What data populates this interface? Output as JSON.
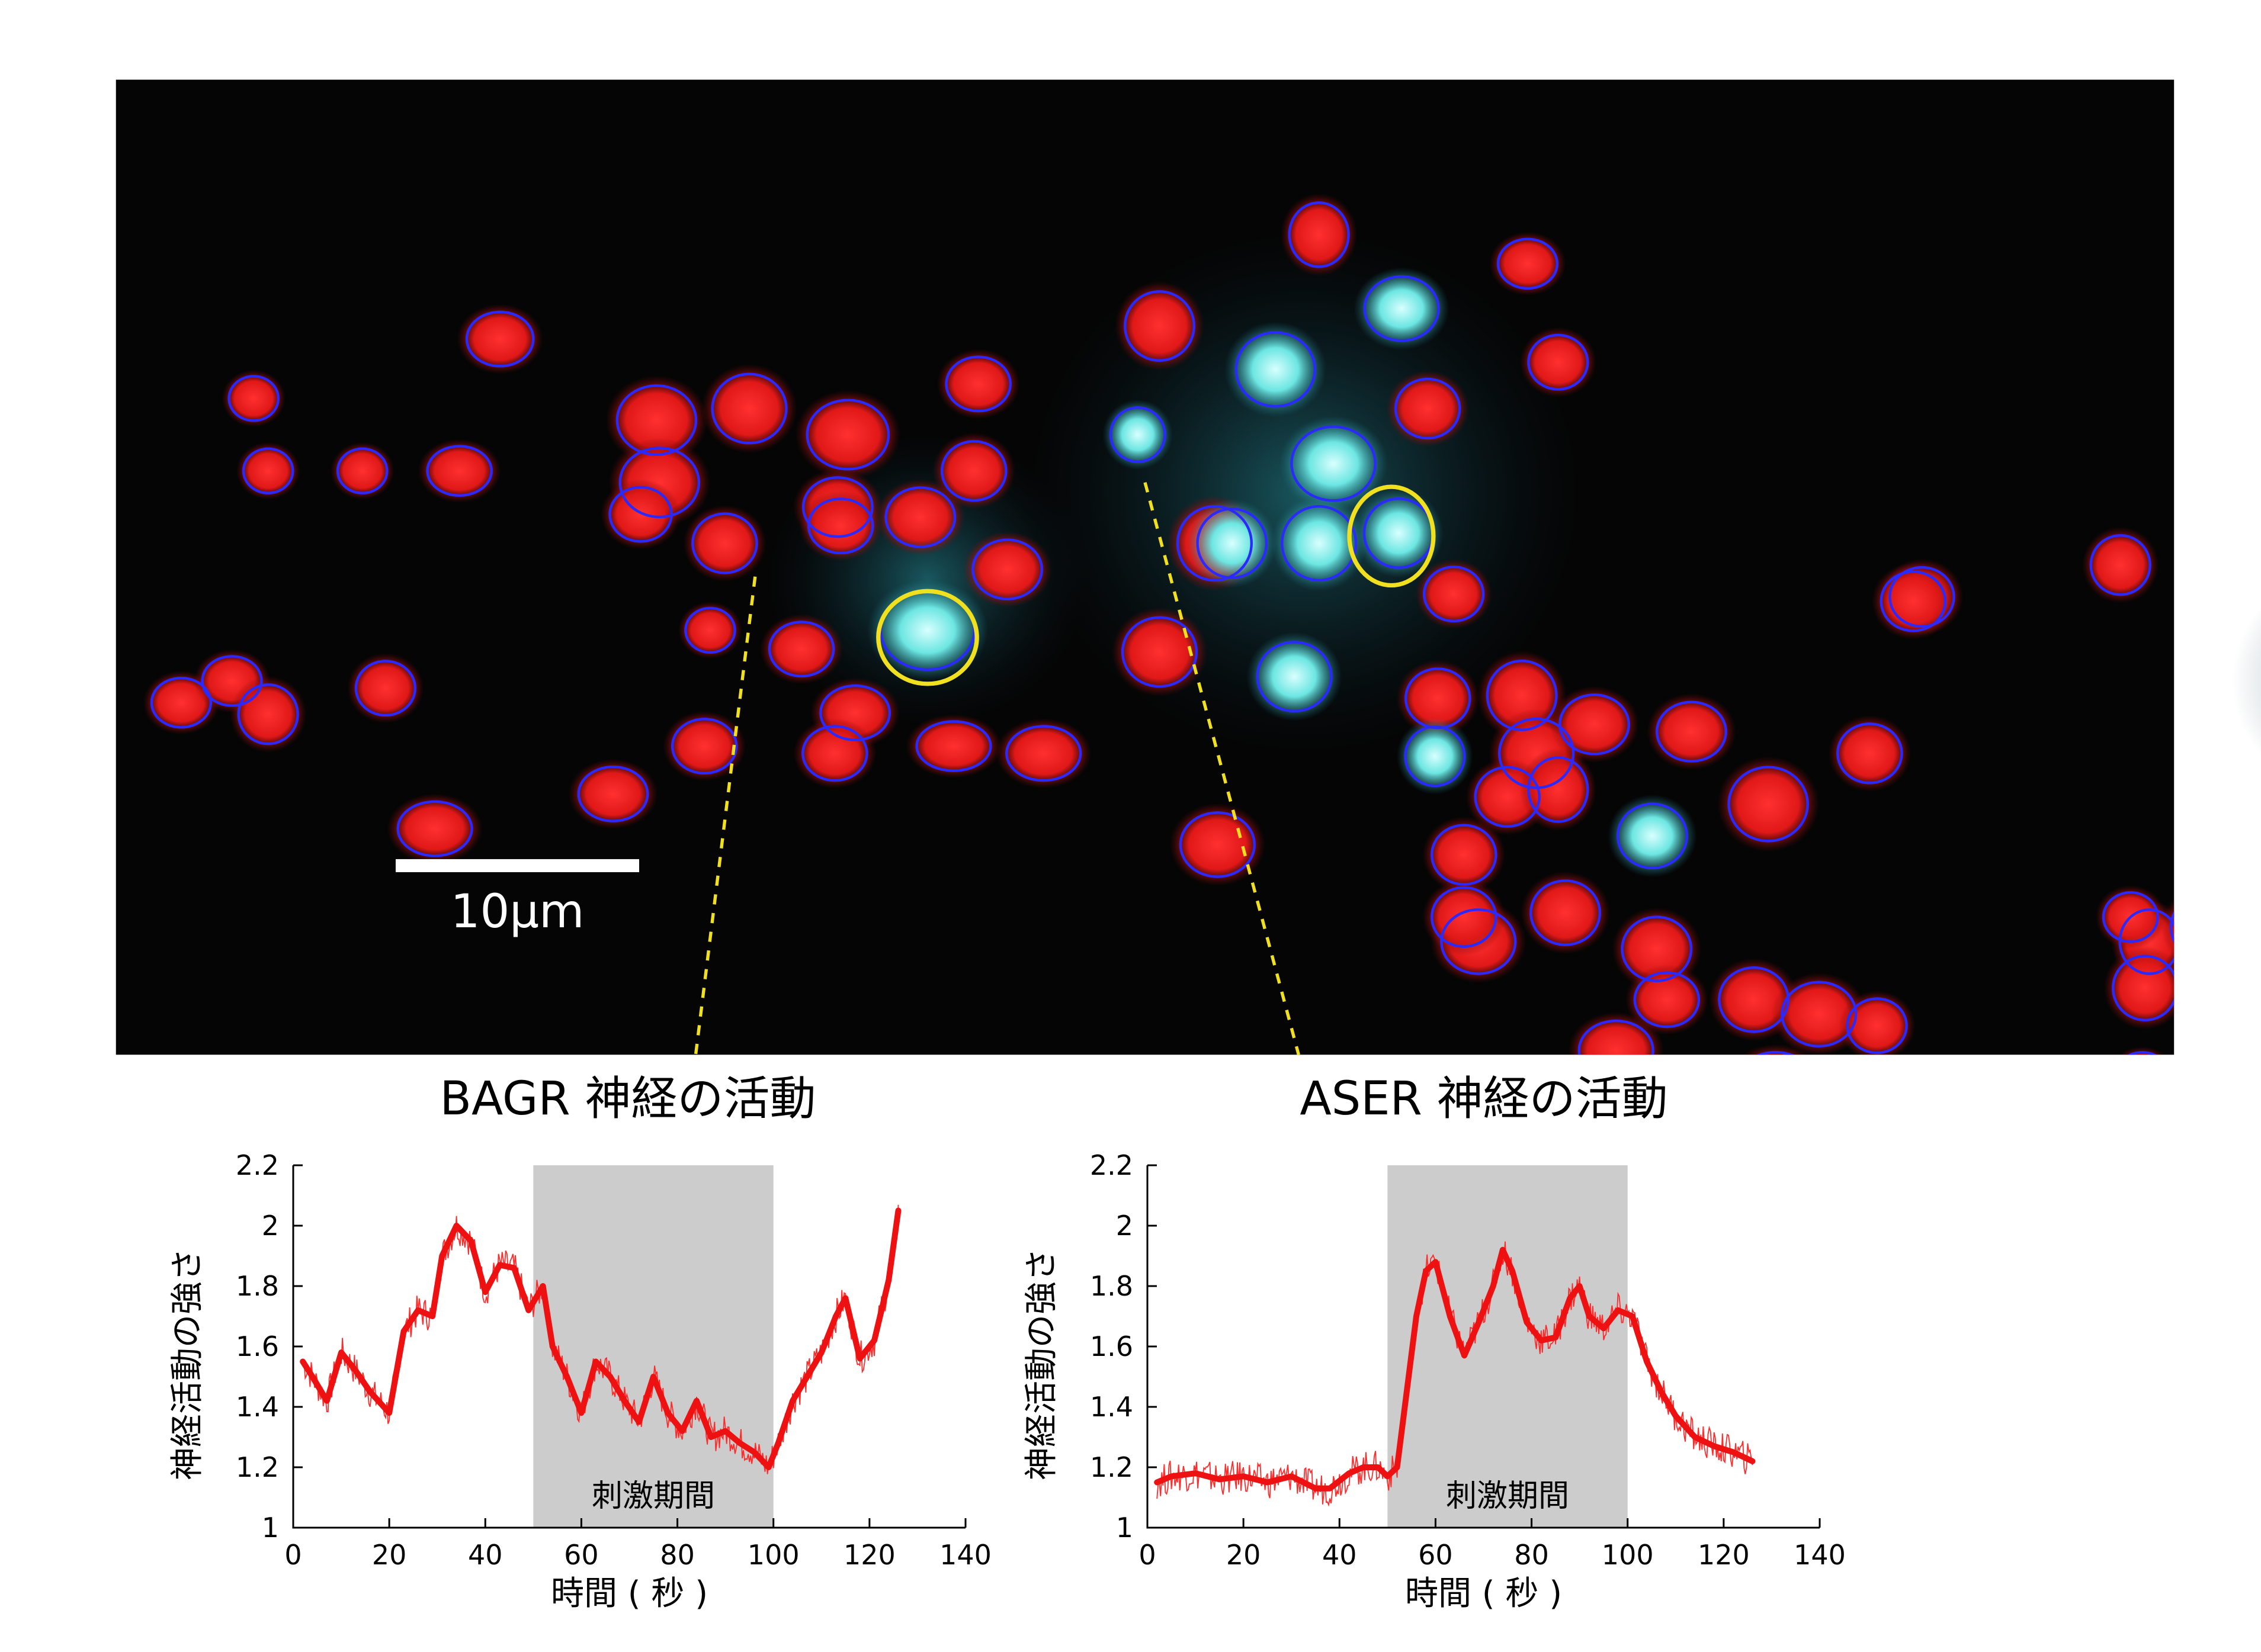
{
  "micrograph": {
    "scale_bar_label": "10μm",
    "colors": {
      "red_cell": "#e01c1c",
      "cyan_cell": "#5fe0dc",
      "roi_outline": "#2a2aff",
      "highlight_outline": "#f0e020",
      "background": "#050505"
    },
    "cells": [
      {
        "cx": 345,
        "cy": 234,
        "rx": 27,
        "ry": 22,
        "c": "red"
      },
      {
        "cx": 317,
        "cy": 325,
        "rx": 26,
        "ry": 20,
        "c": "red"
      },
      {
        "cx": 453,
        "cy": 290,
        "rx": 32,
        "ry": 28,
        "c": "red"
      },
      {
        "cx": 517,
        "cy": 282,
        "rx": 30,
        "ry": 28,
        "c": "red"
      },
      {
        "cx": 455,
        "cy": 333,
        "rx": 32,
        "ry": 28,
        "c": "red"
      },
      {
        "cx": 585,
        "cy": 300,
        "rx": 33,
        "ry": 28,
        "c": "red"
      },
      {
        "cx": 578,
        "cy": 350,
        "rx": 28,
        "ry": 24,
        "c": "red"
      },
      {
        "cx": 635,
        "cy": 357,
        "rx": 28,
        "ry": 24,
        "c": "red"
      },
      {
        "cx": 500,
        "cy": 375,
        "rx": 26,
        "ry": 24,
        "c": "red"
      },
      {
        "cx": 442,
        "cy": 355,
        "rx": 25,
        "ry": 22,
        "c": "red"
      },
      {
        "cx": 672,
        "cy": 325,
        "rx": 26,
        "ry": 24,
        "c": "red"
      },
      {
        "cx": 675,
        "cy": 265,
        "rx": 26,
        "ry": 22,
        "c": "red"
      },
      {
        "cx": 580,
        "cy": 363,
        "rx": 26,
        "ry": 22,
        "c": "red"
      },
      {
        "cx": 695,
        "cy": 393,
        "rx": 28,
        "ry": 24,
        "c": "red"
      },
      {
        "cx": 490,
        "cy": 435,
        "rx": 20,
        "ry": 18,
        "c": "red"
      },
      {
        "cx": 553,
        "cy": 448,
        "rx": 26,
        "ry": 22,
        "c": "red"
      },
      {
        "cx": 590,
        "cy": 492,
        "rx": 28,
        "ry": 22,
        "c": "red"
      },
      {
        "cx": 576,
        "cy": 520,
        "rx": 26,
        "ry": 22,
        "c": "red"
      },
      {
        "cx": 658,
        "cy": 515,
        "rx": 30,
        "ry": 20,
        "c": "red"
      },
      {
        "cx": 720,
        "cy": 520,
        "rx": 30,
        "ry": 22,
        "c": "red"
      },
      {
        "cx": 486,
        "cy": 515,
        "rx": 26,
        "ry": 22,
        "c": "red"
      },
      {
        "cx": 423,
        "cy": 548,
        "rx": 28,
        "ry": 22,
        "c": "red"
      },
      {
        "cx": 300,
        "cy": 572,
        "rx": 30,
        "ry": 22,
        "c": "red"
      },
      {
        "cx": 266,
        "cy": 475,
        "rx": 24,
        "ry": 22,
        "c": "red"
      },
      {
        "cx": 125,
        "cy": 485,
        "rx": 24,
        "ry": 20,
        "c": "red"
      },
      {
        "cx": 160,
        "cy": 470,
        "rx": 24,
        "ry": 20,
        "c": "red"
      },
      {
        "cx": 185,
        "cy": 493,
        "rx": 24,
        "ry": 24,
        "c": "red"
      },
      {
        "cx": 175,
        "cy": 275,
        "rx": 20,
        "ry": 18,
        "c": "red"
      },
      {
        "cx": 185,
        "cy": 325,
        "rx": 20,
        "ry": 18,
        "c": "red"
      },
      {
        "cx": 250,
        "cy": 325,
        "rx": 20,
        "ry": 18,
        "c": "red"
      },
      {
        "cx": 910,
        "cy": 162,
        "rx": 24,
        "ry": 26,
        "c": "red"
      },
      {
        "cx": 1054,
        "cy": 182,
        "rx": 24,
        "ry": 20,
        "c": "red"
      },
      {
        "cx": 1075,
        "cy": 250,
        "rx": 24,
        "ry": 22,
        "c": "red"
      },
      {
        "cx": 985,
        "cy": 282,
        "rx": 26,
        "ry": 24,
        "c": "red"
      },
      {
        "cx": 800,
        "cy": 225,
        "rx": 28,
        "ry": 28,
        "c": "red"
      },
      {
        "cx": 800,
        "cy": 450,
        "rx": 30,
        "ry": 28,
        "c": "red"
      },
      {
        "cx": 838,
        "cy": 375,
        "rx": 30,
        "ry": 30,
        "c": "red"
      },
      {
        "cx": 1003,
        "cy": 410,
        "rx": 24,
        "ry": 22,
        "c": "red"
      },
      {
        "cx": 1050,
        "cy": 480,
        "rx": 28,
        "ry": 28,
        "c": "red"
      },
      {
        "cx": 992,
        "cy": 482,
        "rx": 26,
        "ry": 24,
        "c": "red"
      },
      {
        "cx": 1060,
        "cy": 520,
        "rx": 30,
        "ry": 28,
        "c": "red"
      },
      {
        "cx": 1040,
        "cy": 550,
        "rx": 26,
        "ry": 24,
        "c": "red"
      },
      {
        "cx": 1075,
        "cy": 545,
        "rx": 24,
        "ry": 26,
        "c": "red"
      },
      {
        "cx": 1100,
        "cy": 500,
        "rx": 28,
        "ry": 24,
        "c": "red"
      },
      {
        "cx": 1167,
        "cy": 505,
        "rx": 28,
        "ry": 24,
        "c": "red"
      },
      {
        "cx": 1220,
        "cy": 555,
        "rx": 32,
        "ry": 30,
        "c": "red"
      },
      {
        "cx": 1290,
        "cy": 520,
        "rx": 26,
        "ry": 24,
        "c": "red"
      },
      {
        "cx": 1326,
        "cy": 412,
        "rx": 26,
        "ry": 24,
        "c": "red"
      },
      {
        "cx": 840,
        "cy": 583,
        "rx": 30,
        "ry": 26,
        "c": "red"
      },
      {
        "cx": 1010,
        "cy": 590,
        "rx": 26,
        "ry": 24,
        "c": "red"
      },
      {
        "cx": 1080,
        "cy": 630,
        "rx": 28,
        "ry": 26,
        "c": "red"
      },
      {
        "cx": 1020,
        "cy": 650,
        "rx": 30,
        "ry": 26,
        "c": "red"
      },
      {
        "cx": 1143,
        "cy": 655,
        "rx": 28,
        "ry": 26,
        "c": "red"
      },
      {
        "cx": 1150,
        "cy": 690,
        "rx": 26,
        "ry": 22,
        "c": "red"
      },
      {
        "cx": 1115,
        "cy": 725,
        "rx": 30,
        "ry": 24,
        "c": "red"
      },
      {
        "cx": 1210,
        "cy": 690,
        "rx": 28,
        "ry": 26,
        "c": "red"
      },
      {
        "cx": 1255,
        "cy": 700,
        "rx": 30,
        "ry": 26,
        "c": "red"
      },
      {
        "cx": 1225,
        "cy": 745,
        "rx": 30,
        "ry": 22,
        "c": "red"
      },
      {
        "cx": 1295,
        "cy": 708,
        "rx": 24,
        "ry": 22,
        "c": "red"
      },
      {
        "cx": 1010,
        "cy": 633,
        "rx": 26,
        "ry": 24,
        "c": "red"
      },
      {
        "cx": 1463,
        "cy": 390,
        "rx": 24,
        "ry": 24,
        "c": "red"
      },
      {
        "cx": 1320,
        "cy": 415,
        "rx": 26,
        "ry": 24,
        "c": "red"
      },
      {
        "cx": 1680,
        "cy": 435,
        "rx": 24,
        "ry": 22,
        "c": "red"
      },
      {
        "cx": 1775,
        "cy": 437,
        "rx": 24,
        "ry": 22,
        "c": "red"
      },
      {
        "cx": 1483,
        "cy": 650,
        "rx": 24,
        "ry": 26,
        "c": "red"
      },
      {
        "cx": 1520,
        "cy": 640,
        "rx": 26,
        "ry": 26,
        "c": "red"
      },
      {
        "cx": 1480,
        "cy": 682,
        "rx": 26,
        "ry": 26,
        "c": "red"
      },
      {
        "cx": 1525,
        "cy": 730,
        "rx": 20,
        "ry": 16,
        "c": "red"
      },
      {
        "cx": 1478,
        "cy": 740,
        "rx": 20,
        "ry": 16,
        "c": "red"
      },
      {
        "cx": 1590,
        "cy": 800,
        "rx": 28,
        "ry": 26,
        "c": "red"
      },
      {
        "cx": 1690,
        "cy": 790,
        "rx": 28,
        "ry": 26,
        "c": "red"
      },
      {
        "cx": 1730,
        "cy": 810,
        "rx": 26,
        "ry": 24,
        "c": "red"
      },
      {
        "cx": 1760,
        "cy": 773,
        "rx": 24,
        "ry": 24,
        "c": "red"
      },
      {
        "cx": 1800,
        "cy": 810,
        "rx": 24,
        "ry": 24,
        "c": "red"
      },
      {
        "cx": 1580,
        "cy": 830,
        "rx": 22,
        "ry": 18,
        "c": "red"
      },
      {
        "cx": 1470,
        "cy": 633,
        "rx": 22,
        "ry": 20,
        "c": "red"
      },
      {
        "cx": 640,
        "cy": 435,
        "rx": 38,
        "ry": 32,
        "c": "cyan"
      },
      {
        "cx": 880,
        "cy": 255,
        "rx": 32,
        "ry": 30,
        "c": "cyan"
      },
      {
        "cx": 967,
        "cy": 213,
        "rx": 30,
        "ry": 26,
        "c": "cyan"
      },
      {
        "cx": 920,
        "cy": 320,
        "rx": 34,
        "ry": 30,
        "c": "cyan"
      },
      {
        "cx": 850,
        "cy": 375,
        "rx": 28,
        "ry": 28,
        "c": "cyan"
      },
      {
        "cx": 910,
        "cy": 375,
        "rx": 30,
        "ry": 30,
        "c": "cyan"
      },
      {
        "cx": 965,
        "cy": 368,
        "rx": 28,
        "ry": 28,
        "c": "cyan"
      },
      {
        "cx": 893,
        "cy": 467,
        "rx": 30,
        "ry": 28,
        "c": "cyan"
      },
      {
        "cx": 785,
        "cy": 300,
        "rx": 22,
        "ry": 22,
        "c": "cyan"
      },
      {
        "cx": 1140,
        "cy": 577,
        "rx": 28,
        "ry": 26,
        "c": "cyan"
      },
      {
        "cx": 1660,
        "cy": 465,
        "rx": 34,
        "ry": 30,
        "c": "cyan"
      },
      {
        "cx": 990,
        "cy": 522,
        "rx": 24,
        "ry": 24,
        "c": "cyan"
      }
    ],
    "yellow_rois": [
      {
        "cx": 640,
        "cy": 440,
        "rx": 34,
        "ry": 32
      },
      {
        "cx": 960,
        "cy": 370,
        "rx": 29,
        "ry": 34
      }
    ]
  },
  "panels": [
    {
      "title": "BAGR 神経の活動",
      "stimulus_label": "刺激期間",
      "chart_data": {
        "type": "line",
        "xlabel": "時間 ( 秒 )",
        "ylabel": "神経活動の強さ",
        "xlim": [
          0,
          140
        ],
        "ylim": [
          1,
          2.2
        ],
        "xticks": [
          0,
          20,
          40,
          60,
          80,
          100,
          120,
          140
        ],
        "yticks": [
          1,
          1.2,
          1.4,
          1.6,
          1.8,
          2,
          2.2
        ],
        "stimulus_period": [
          50,
          100
        ],
        "series": [
          {
            "x": [
              2,
              4,
              7,
              10,
              13,
              16,
              20,
              23,
              26,
              29,
              31,
              34,
              37,
              40,
              43,
              46,
              49,
              52,
              54,
              57,
              60,
              63,
              66,
              69,
              72,
              75,
              78,
              81,
              84,
              87,
              90,
              93,
              96,
              99,
              101,
              104,
              107,
              110,
              113,
              115,
              118,
              121,
              124,
              126
            ],
            "y": [
              1.55,
              1.5,
              1.42,
              1.58,
              1.52,
              1.45,
              1.38,
              1.65,
              1.72,
              1.7,
              1.9,
              2.0,
              1.95,
              1.78,
              1.87,
              1.86,
              1.72,
              1.8,
              1.6,
              1.5,
              1.38,
              1.55,
              1.5,
              1.42,
              1.35,
              1.5,
              1.38,
              1.32,
              1.42,
              1.3,
              1.32,
              1.28,
              1.25,
              1.2,
              1.28,
              1.42,
              1.5,
              1.58,
              1.7,
              1.76,
              1.56,
              1.62,
              1.82,
              2.05
            ]
          }
        ]
      }
    },
    {
      "title": "ASER 神経の活動",
      "stimulus_label": "刺激期間",
      "chart_data": {
        "type": "line",
        "xlabel": "時間 ( 秒 )",
        "ylabel": "神経活動の強さ",
        "xlim": [
          0,
          140
        ],
        "ylim": [
          1,
          2.2
        ],
        "xticks": [
          0,
          20,
          40,
          60,
          80,
          100,
          120,
          140
        ],
        "yticks": [
          1,
          1.2,
          1.4,
          1.6,
          1.8,
          2,
          2.2
        ],
        "stimulus_period": [
          50,
          100
        ],
        "series": [
          {
            "x": [
              2,
              5,
              10,
              15,
              20,
              25,
              30,
              35,
              38,
              42,
              45,
              48,
              50,
              52,
              54,
              56,
              58,
              60,
              63,
              66,
              69,
              72,
              74,
              76,
              79,
              82,
              85,
              88,
              90,
              92,
              95,
              98,
              101,
              104,
              107,
              110,
              114,
              118,
              122,
              126
            ],
            "y": [
              1.15,
              1.17,
              1.18,
              1.16,
              1.17,
              1.15,
              1.17,
              1.13,
              1.13,
              1.18,
              1.2,
              1.2,
              1.17,
              1.2,
              1.45,
              1.7,
              1.85,
              1.88,
              1.7,
              1.57,
              1.68,
              1.8,
              1.92,
              1.85,
              1.68,
              1.62,
              1.63,
              1.76,
              1.8,
              1.7,
              1.66,
              1.72,
              1.7,
              1.55,
              1.45,
              1.37,
              1.3,
              1.27,
              1.25,
              1.22
            ]
          }
        ]
      }
    }
  ]
}
